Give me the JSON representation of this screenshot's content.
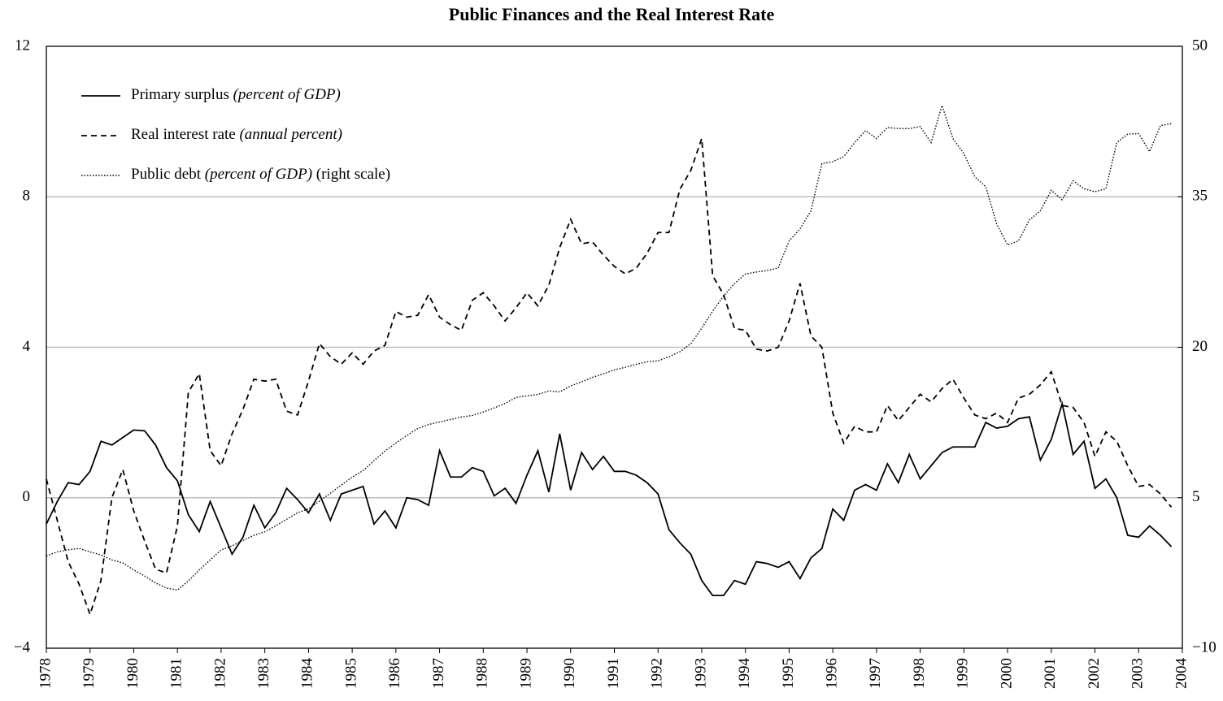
{
  "chart_data": {
    "type": "line",
    "title": "Public Finances and the Real Interest Rate",
    "x": [
      1978,
      1978.25,
      1978.5,
      1978.75,
      1979,
      1979.25,
      1979.5,
      1979.75,
      1980,
      1980.25,
      1980.5,
      1980.75,
      1981,
      1981.25,
      1981.5,
      1981.75,
      1982,
      1982.25,
      1982.5,
      1982.75,
      1983,
      1983.25,
      1983.5,
      1983.75,
      1984,
      1984.25,
      1984.5,
      1984.75,
      1985,
      1985.25,
      1985.5,
      1985.75,
      1986,
      1986.25,
      1986.5,
      1986.75,
      1987,
      1987.25,
      1987.5,
      1987.75,
      1988,
      1988.25,
      1988.5,
      1988.75,
      1989,
      1989.25,
      1989.5,
      1989.75,
      1990,
      1990.25,
      1990.5,
      1990.75,
      1991,
      1991.25,
      1991.5,
      1991.75,
      1992,
      1992.25,
      1992.5,
      1992.75,
      1993,
      1993.25,
      1993.5,
      1993.75,
      1994,
      1994.25,
      1994.5,
      1994.75,
      1995,
      1995.25,
      1995.5,
      1995.75,
      1996,
      1996.25,
      1996.5,
      1996.75,
      1997,
      1997.25,
      1997.5,
      1997.75,
      1998,
      1998.25,
      1998.5,
      1998.75,
      1999,
      1999.25,
      1999.5,
      1999.75,
      2000,
      2000.25,
      2000.5,
      2000.75,
      2001,
      2001.25,
      2001.5,
      2001.75,
      2002,
      2002.25,
      2002.5,
      2002.75,
      2003,
      2003.25,
      2003.5,
      2003.75
    ],
    "series": [
      {
        "name": "Primary surplus (percent of GDP)",
        "color": "#000000",
        "style": "solid",
        "axis": "y",
        "values": [
          -0.7,
          -0.1,
          0.4,
          0.35,
          0.7,
          1.5,
          1.4,
          1.6,
          1.8,
          1.78,
          1.4,
          0.8,
          0.45,
          -0.45,
          -0.9,
          -0.1,
          -0.8,
          -1.5,
          -1.05,
          -0.2,
          -0.8,
          -0.4,
          0.25,
          -0.05,
          -0.4,
          0.1,
          -0.6,
          0.1,
          0.2,
          0.3,
          -0.7,
          -0.35,
          -0.8,
          0.0,
          -0.05,
          -0.2,
          1.25,
          0.55,
          0.55,
          0.8,
          0.7,
          0.05,
          0.25,
          -0.15,
          0.6,
          1.25,
          0.15,
          1.7,
          0.2,
          1.2,
          0.75,
          1.1,
          0.7,
          0.7,
          0.6,
          0.4,
          0.1,
          -0.85,
          -1.2,
          -1.5,
          -2.2,
          -2.6,
          -2.6,
          -2.2,
          -2.3,
          -1.7,
          -1.75,
          -1.85,
          -1.7,
          -2.15,
          -1.6,
          -1.35,
          -0.3,
          -0.6,
          0.2,
          0.35,
          0.2,
          0.9,
          0.4,
          1.15,
          0.5,
          0.85,
          1.2,
          1.35,
          1.35,
          1.35,
          2.0,
          1.85,
          1.9,
          2.1,
          2.15,
          1.0,
          1.55,
          2.5,
          1.15,
          1.5,
          0.25,
          0.5,
          0.0,
          -1.0,
          -1.05,
          -0.75,
          -1.0,
          -1.3
        ]
      },
      {
        "name": "Real interest rate (annual percent)",
        "color": "#000000",
        "style": "dashed",
        "axis": "y",
        "values": [
          0.5,
          -0.6,
          -1.7,
          -2.3,
          -3.1,
          -2.2,
          0.0,
          0.75,
          -0.35,
          -1.15,
          -1.9,
          -2.0,
          -0.75,
          2.8,
          3.3,
          1.25,
          0.85,
          1.7,
          2.35,
          3.15,
          3.1,
          3.15,
          2.3,
          2.2,
          3.1,
          4.1,
          3.75,
          3.55,
          3.85,
          3.55,
          3.9,
          4.05,
          4.95,
          4.8,
          4.85,
          5.4,
          4.8,
          4.6,
          4.45,
          5.25,
          5.45,
          5.1,
          4.7,
          5.05,
          5.45,
          5.1,
          5.65,
          6.65,
          7.4,
          6.75,
          6.8,
          6.45,
          6.15,
          5.95,
          6.1,
          6.5,
          7.05,
          7.05,
          8.2,
          8.7,
          9.55,
          5.9,
          5.4,
          4.5,
          4.45,
          3.95,
          3.9,
          4.0,
          4.7,
          5.7,
          4.3,
          4.0,
          2.25,
          1.45,
          1.9,
          1.75,
          1.75,
          2.45,
          2.05,
          2.4,
          2.75,
          2.55,
          2.9,
          3.15,
          2.65,
          2.2,
          2.1,
          2.25,
          2.0,
          2.65,
          2.75,
          3.0,
          3.35,
          2.45,
          2.4,
          2.0,
          1.1,
          1.75,
          1.5,
          0.85,
          0.3,
          0.35,
          0.1,
          -0.25
        ]
      },
      {
        "name": "Public debt (percent of GDP) (right scale)",
        "color": "#000000",
        "style": "dotted",
        "axis": "y2",
        "values": [
          -0.8,
          -0.4,
          -0.2,
          -0.05,
          -0.4,
          -0.7,
          -1.2,
          -1.5,
          -2.2,
          -2.8,
          -3.5,
          -4.0,
          -4.2,
          -3.3,
          -2.2,
          -1.2,
          -0.2,
          0.2,
          0.75,
          1.25,
          1.6,
          2.2,
          2.85,
          3.5,
          3.9,
          4.65,
          5.45,
          6.25,
          7.05,
          7.7,
          8.7,
          9.65,
          10.45,
          11.2,
          11.9,
          12.3,
          12.55,
          12.8,
          13.05,
          13.2,
          13.55,
          13.95,
          14.4,
          15.0,
          15.15,
          15.3,
          15.65,
          15.55,
          16.15,
          16.55,
          17.0,
          17.35,
          17.75,
          18.0,
          18.3,
          18.55,
          18.65,
          19.05,
          19.55,
          20.35,
          21.9,
          23.6,
          25.1,
          26.35,
          27.3,
          27.5,
          27.65,
          27.9,
          30.6,
          31.8,
          33.6,
          38.3,
          38.5,
          39.0,
          40.4,
          41.6,
          40.8,
          41.9,
          41.8,
          41.8,
          42.0,
          40.4,
          44.1,
          40.8,
          39.3,
          37.0,
          36.0,
          32.3,
          30.2,
          30.6,
          32.7,
          33.6,
          35.65,
          34.7,
          36.6,
          35.8,
          35.5,
          35.8,
          40.4,
          41.25,
          41.3,
          39.5,
          42.1,
          42.3
        ]
      }
    ],
    "xlim": [
      1978,
      2004
    ],
    "xticks": [
      1978,
      1979,
      1980,
      1981,
      1982,
      1983,
      1984,
      1985,
      1986,
      1987,
      1988,
      1989,
      1990,
      1991,
      1992,
      1993,
      1994,
      1995,
      1996,
      1997,
      1998,
      1999,
      2000,
      2001,
      2002,
      2003,
      2004
    ],
    "ylim": [
      -4,
      12
    ],
    "yticks": [
      {
        "value": -4,
        "label": "−4"
      },
      0,
      4,
      8,
      12
    ],
    "y2lim": [
      -10,
      50
    ],
    "y2ticks": [
      {
        "value": -10,
        "label": "−10"
      },
      5,
      20,
      35,
      50
    ],
    "grid": true,
    "legend": "upper left"
  }
}
